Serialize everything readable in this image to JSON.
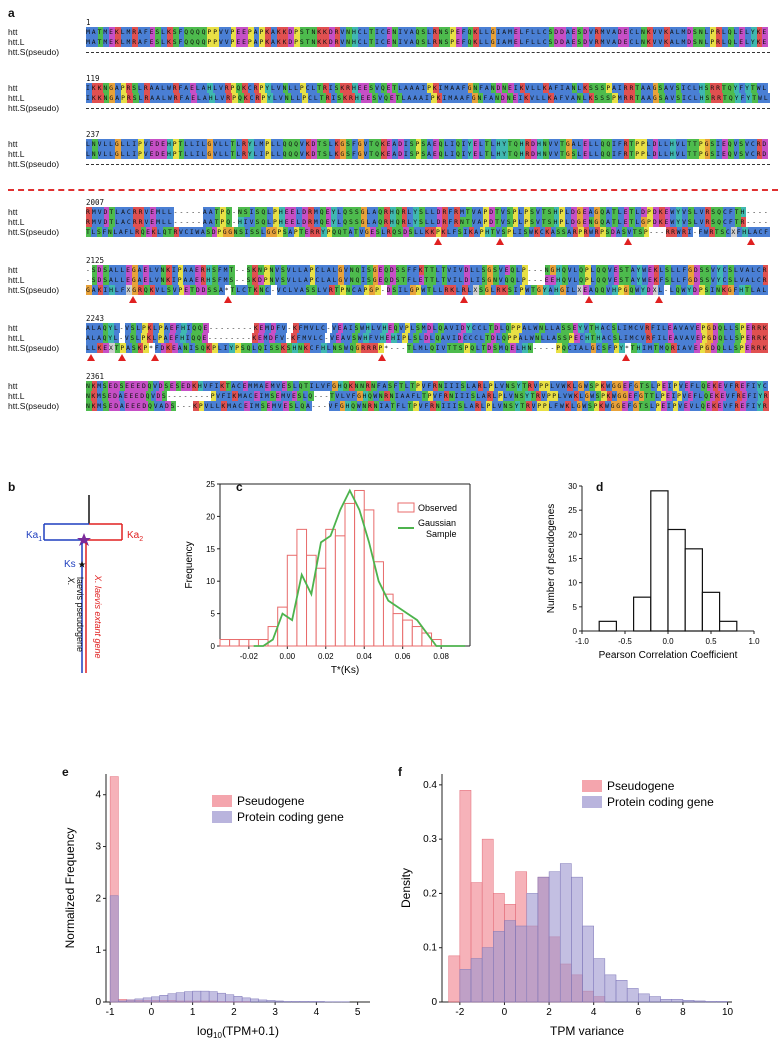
{
  "panels": {
    "a": "a",
    "b": "b",
    "c": "c",
    "d": "d",
    "e": "e",
    "f": "f"
  },
  "alignment": {
    "labels": [
      "htt",
      "htt.L",
      "htt.S(pseudo)"
    ],
    "blocks": [
      {
        "pos": "1",
        "top": [
          "MATMEKLMRAFESLKSFQQQQPPVVPEEPAPKAKKDPSTNKKDRVNHCLTICENIVAQSLRNSPEFQKLLGIAMELFLLCSDDAESDVRMVADECLNKVVKALMDSNLPRLQLELYKE",
          "MATMEKLMRAFESLKSFQQQQPPVVPEEPAPKAKKDPSTNKKDRVNHCLTICENIVAQSLRNSPEFQKLLGIAMELFLLCSDDAESDVRMVADECLNKVVKALMDSNLPRLQLELYKE"
        ],
        "pseudo_dashed": true
      },
      {
        "pos": "119",
        "top": [
          "IKKNGAPRSLRAALWRFAELAHLVRPQKCRPYLVNLLPCLTRISKRHEESVQETLAAAIPKIMAAFGNFANDNEIKVLLKAFIANLKSSSPAIRRTAAGSAVSICLHSRRTQYFYTWL",
          "IKKNGAPRSLRAALWRFAELAHLVRPQKCRPYLVNLLPCLTRISKRHEESVQETLAAAIPKIMAAFGNFANDNEIKVLLKAFVANLKSSSPMRRTAAGSAVSICLHSRRTQYFYTWL"
        ],
        "pseudo_dashed": true
      },
      {
        "pos": "237",
        "top": [
          "LNVLLGLLIPVEDEHPTLLILGVLLTLRYLMPLLQQQVKDTSLKGSFGVTQKEADISPSAEQLIQIYELTLHYTQHRDHNVVTGALELLQQIFRTPPLDLLHVLTTPGSIEQVSVCRD",
          "LNVLLGLLIPVEDEHPTLLILGVLLTLRYLIPLLQQQVKDTSLKGSFGVTQKEADISPSAEQLIQIYELTLHYTQHRDHNVVTGSLELLQQIFRTPPLDLLHVLTTPGSIEQVSVCRD"
        ],
        "pseudo_dashed": true
      },
      {
        "pos": "2007",
        "top": [
          "RMVDTLACRRVEMLL-----AATPQ-NSISQLPHEELDRMQEYLQSSGLAQRHQRLYSLLDRFRMTVAPDTVSPLPSVTSHPLDGEAGQATLETLDPDKEWYVSLVRSQCFTH----",
          "RMVDTLACRRVEMLL-----AATPQ-HIVSQLPHEELDRMQEYLQSSGLAQRHQRLYSLLDRFRNTVAPDTVSPLPSVTSHPLDGENGQATLETLGPDKEWYVSLVRSQCFTR----",
          "TLSFNLAFLRQEKLQTRVCIWASDPGGNSISSLGGPSAPTERRYPQQTATVGESLRQSDSLLKKPKLFSIKAPHTVSPLISWKCKASSARPRWRPSDASVTSP---RRWRI-FWRTSCXFHLACF"
        ],
        "tris": [
          51.5,
          60.5,
          79.3,
          97.2
        ]
      },
      {
        "pos": "2125",
        "top": [
          "-SDSALLEGAELVNKIPAAERHSFMT--SKNPNVSVLLAPCLALGVNQISGEQDSSFFKTTLTVIVDLLSGSVEQLP---NGHQVLQPLQQVESTAYWEKLSLLFGDSSVYCSLVALCR",
          "-SDSALLEGAELVNKIPAAERHSFMS--SKDPNVSVLLAPCLALGVNQISGEQDSTFLETTLTVILDLISGNVQQLP---EEHQVLQPLQQVESTAYWEKFSLLFGDSSVYCSLVALCR",
          "GAKIHLFXGRQKVLSVPETDDSSA*TLCTKNC-VCLVASSLVRTPNCAPGP-DSILGPWTLLRKLRLXSGLRKSIPWTGYAHGILXEAQQVHPGQWYDXL-LQWYDPSINKGFHTLAL"
        ],
        "tris": [
          6.8,
          20.7,
          55.3,
          73.5,
          83.8
        ]
      },
      {
        "pos": "2243",
        "top": [
          "ALAQYL-VSLPKLPAEFHIQQE--------KEMDFV-KFMVLC-VEAISWHLVHEQVPLSMDLQAVIDYCCLTDLQPPALWNLLASSEYVTHACSLIMCVRFILEAVAVEPGDQLLSPERRK",
          "ALAQYL-VSLPKLPAEFHIQQE--------KEMDFV-KFMVLC-VEAVSWHFVHEHIPLSLDLQAVIDCCCLTDLQPPALWNLLASSPECHTHACSLIMCVRFILEAVAVEPGDQLLSPERRK",
          "LLKEXTPASKP*FDKEANISQKPLIYPSQLQISSKSHNKCFHLNSWQGRRRP*---TLMLQIVTTSPQLTDSMQELHN----PQCIALGCSFPY*THIMTMQRIAVEPGDQLLSPERRK"
        ],
        "tris": [
          0.8,
          5.3,
          10.1,
          43.3,
          79.0
        ]
      },
      {
        "pos": "2361",
        "top": [
          "NKMSEDSEEEDQVDSESEDKHVFIKTACEMMAEMVESLQTILVFGHQKNNRNFASFTLTPVFRNIIISLARLPLVNSYTRVPPLVWKLGWSPKWGGEFGTSLPEIPVEFLQEKEVFREFIYC",
          "NKMSEDAEEEDQVDS--------PVFIKMACEIMSEMVESLQ---TVLVFGHQWNRNIAAFLTPVFRNIIISLARLPLVNSYTRVPPLVWKLGWSPKWGGEFGTTLPEIPVEFLQEKEVFREFIYR",
          "NKMSEDAEEEDQVADS---KPVLLKMACEIMSEMVESLQA---VFGHQWNRNIATFLTPVFRNIIISLARLPLVNSYTRVPPLFWKLGWSPKWGGEFGTSLPEIPVEVLQEKEVFREFIYR"
        ]
      }
    ]
  },
  "panel_b": {
    "ka1": "Ka",
    "ka1_sub": "1",
    "ka2": "Ka",
    "ka2_sub": "2",
    "ks": "Ks",
    "gene_label_1": "X. laevis extant gene",
    "gene_label_2a": "X.",
    "gene_label_2b": "laevis pseudogene",
    "colors": {
      "ka1": "#1f3fbf",
      "ka2": "#e02020",
      "star": "#7a2a9a"
    }
  },
  "chart_data": [
    {
      "panel": "c",
      "type": "bar",
      "xlabel": "T*(Ks)",
      "ylabel": "Frequency",
      "xlim": [
        -0.035,
        0.095
      ],
      "ylim": [
        0,
        25
      ],
      "xticks": [
        "-0.02",
        "0.00",
        "0.02",
        "0.04",
        "0.06",
        "0.08"
      ],
      "xtick_values": [
        -0.02,
        0.0,
        0.02,
        0.04,
        0.06,
        0.08
      ],
      "yticks": [
        "0",
        "5",
        "10",
        "15",
        "20",
        "25"
      ],
      "legend": [
        "Observed",
        "Gaussian\nSample"
      ],
      "legend_labels": {
        "observed": "Observed",
        "gaussian_1": "Gaussian",
        "gaussian_2": "Sample"
      },
      "bin_width": 0.005,
      "bins_start": [
        -0.035,
        -0.03,
        -0.025,
        -0.02,
        -0.015,
        -0.01,
        -0.005,
        0.0,
        0.005,
        0.01,
        0.015,
        0.02,
        0.025,
        0.03,
        0.035,
        0.04,
        0.045,
        0.05,
        0.055,
        0.06,
        0.065,
        0.07,
        0.075
      ],
      "observed": [
        1,
        1,
        1,
        1,
        1,
        3,
        6,
        14,
        18,
        14,
        12,
        18,
        17,
        22,
        24,
        21,
        13,
        8,
        5,
        4,
        3,
        2,
        1
      ],
      "gaussian_x": [
        -0.0175,
        -0.0125,
        -0.0075,
        -0.0025,
        0.0025,
        0.0075,
        0.0125,
        0.0175,
        0.0225,
        0.0275,
        0.0325,
        0.0375,
        0.0425,
        0.0475,
        0.0525,
        0.0575,
        0.0625,
        0.0675,
        0.0725,
        0.0775,
        0.0825,
        0.0875,
        0.0925
      ],
      "gaussian_y": [
        0,
        0,
        1,
        5,
        4,
        11,
        8,
        16,
        17,
        21,
        24,
        21,
        16,
        10,
        7,
        6,
        5,
        4,
        2,
        0,
        0,
        0,
        0
      ],
      "colors": {
        "observed": "#e86b6b",
        "gaussian": "#4db34d"
      }
    },
    {
      "panel": "d",
      "type": "bar",
      "xlabel": "Pearson Correlation Coefficient",
      "ylabel": "Number of pseudogenes",
      "xlim": [
        -1.0,
        1.0
      ],
      "ylim": [
        0,
        30
      ],
      "xticks": [
        "-1.0",
        "-0.5",
        "0.0",
        "0.5",
        "1.0"
      ],
      "xtick_values": [
        -1.0,
        -0.5,
        0.0,
        0.5,
        1.0
      ],
      "yticks": [
        "0",
        "5",
        "10",
        "15",
        "20",
        "25",
        "30"
      ],
      "bins_start": [
        -0.8,
        -0.6,
        -0.4,
        -0.2,
        0.0,
        0.2,
        0.4,
        0.6
      ],
      "bin_width": 0.2,
      "values": [
        2,
        0,
        7,
        29,
        21,
        17,
        8,
        2
      ]
    },
    {
      "panel": "e",
      "type": "bar",
      "xlabel": "log10(TPM+0.1)",
      "ylabel": "Normalized Frequency",
      "xlim": [
        -1.1,
        5.3
      ],
      "ylim": [
        0,
        4.4
      ],
      "xticks": [
        "-1",
        "0",
        "1",
        "2",
        "3",
        "4",
        "5"
      ],
      "xtick_values": [
        -1,
        0,
        1,
        2,
        3,
        4,
        5
      ],
      "yticks": [
        "0",
        "1",
        "2",
        "3",
        "4"
      ],
      "legend": [
        "Pseudogene",
        "Protein coding gene"
      ],
      "bin_width": 0.2,
      "bins_start": [
        -1.0,
        -0.8,
        -0.6,
        -0.4,
        -0.2,
        0.0,
        0.2,
        0.4,
        0.6,
        0.8,
        1.0,
        1.2,
        1.4,
        1.6,
        1.8,
        2.0,
        2.2,
        2.4,
        2.6,
        2.8,
        3.0,
        3.2,
        3.4,
        3.6,
        3.8,
        4.0,
        4.2,
        4.4,
        4.6,
        4.8,
        5.0
      ],
      "series": [
        {
          "name": "Pseudogene",
          "values": [
            4.35,
            0.05,
            0.04,
            0.03,
            0.03,
            0.03,
            0.03,
            0.03,
            0.02,
            0.02,
            0.02,
            0.02,
            0.02,
            0.01,
            0.01,
            0.01,
            0.01,
            0,
            0,
            0,
            0,
            0,
            0,
            0,
            0,
            0,
            0,
            0,
            0,
            0,
            0
          ]
        },
        {
          "name": "Protein coding gene",
          "values": [
            2.05,
            0.02,
            0.04,
            0.06,
            0.08,
            0.1,
            0.13,
            0.16,
            0.18,
            0.2,
            0.21,
            0.21,
            0.2,
            0.17,
            0.14,
            0.11,
            0.08,
            0.06,
            0.04,
            0.03,
            0.02,
            0.01,
            0.01,
            0.01,
            0.01,
            0.01,
            0.005,
            0.005,
            0.005,
            0,
            0
          ]
        }
      ],
      "colors": {
        "pseudogene": "#f07f8a",
        "protein": "#9b94cf"
      }
    },
    {
      "panel": "f",
      "type": "bar",
      "xlabel": "TPM variance",
      "ylabel": "Density",
      "xlim": [
        -2.8,
        10.2
      ],
      "ylim": [
        0,
        0.42
      ],
      "xticks": [
        "-2",
        "0",
        "2",
        "4",
        "6",
        "8",
        "10"
      ],
      "xtick_values": [
        -2,
        0,
        2,
        4,
        6,
        8,
        10
      ],
      "yticks": [
        "0",
        "0.1",
        "0.2",
        "0.3",
        "0.4"
      ],
      "legend": [
        "Pseudogene",
        "Protein coding gene"
      ],
      "bin_width": 0.5,
      "bins_start": [
        -2.5,
        -2.0,
        -1.5,
        -1.0,
        -0.5,
        0.0,
        0.5,
        1.0,
        1.5,
        2.0,
        2.5,
        3.0,
        3.5,
        4.0,
        4.5,
        5.0,
        5.5,
        6.0,
        6.5,
        7.0,
        7.5,
        8.0,
        8.5,
        9.0,
        9.5
      ],
      "series": [
        {
          "name": "Pseudogene",
          "values": [
            0.085,
            0.39,
            0.22,
            0.3,
            0.2,
            0.18,
            0.24,
            0.14,
            0.23,
            0.12,
            0.07,
            0.05,
            0.02,
            0.01,
            0,
            0,
            0,
            0,
            0,
            0,
            0,
            0,
            0,
            0,
            0
          ]
        },
        {
          "name": "Protein coding gene",
          "values": [
            0,
            0.06,
            0.08,
            0.1,
            0.13,
            0.15,
            0.14,
            0.2,
            0.23,
            0.24,
            0.255,
            0.23,
            0.14,
            0.08,
            0.05,
            0.04,
            0.025,
            0.015,
            0.01,
            0.005,
            0.005,
            0.003,
            0.002,
            0.001,
            0.001
          ]
        }
      ],
      "colors": {
        "pseudogene": "#f07f8a",
        "protein": "#9b94cf"
      }
    }
  ]
}
